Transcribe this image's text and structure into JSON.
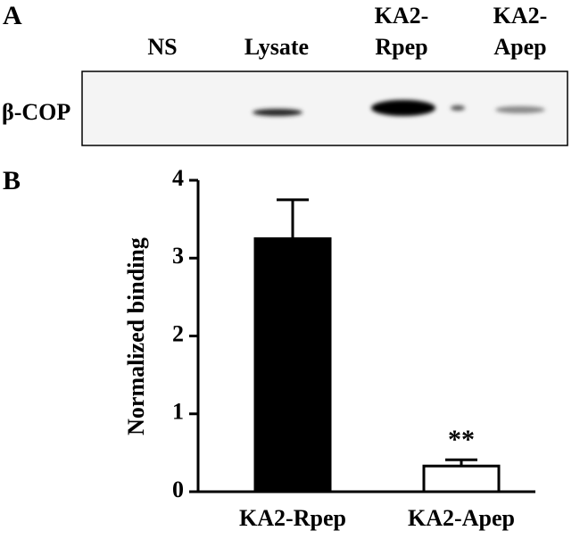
{
  "panel_a": {
    "label": "A",
    "row_label": "β-COP",
    "lanes": [
      [
        "NS"
      ],
      [
        "Lysate"
      ],
      [
        "KA2-",
        "Rpep"
      ],
      [
        "KA2-",
        "Apep"
      ]
    ]
  },
  "chart_data": {
    "type": "bar",
    "panel_label": "B",
    "y_label": "Normalized binding",
    "categories": [
      "KA2-Rpep",
      "KA2-Apep"
    ],
    "values": [
      3.25,
      0.33
    ],
    "errors": [
      0.5,
      0.08
    ],
    "colors": [
      "#000000",
      "#ffffff"
    ],
    "annotation": "**",
    "ylim": [
      0,
      4
    ],
    "yticks": [
      0,
      1,
      2,
      3,
      4
    ]
  }
}
